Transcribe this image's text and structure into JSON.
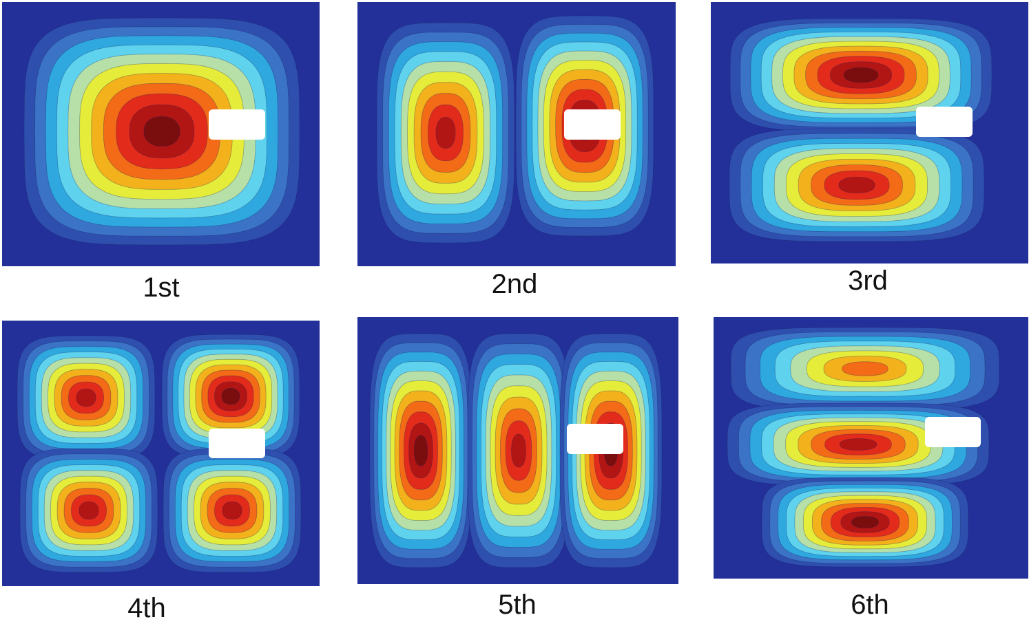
{
  "palette": [
    "#23309a",
    "#2f4fae",
    "#3b74c7",
    "#2ea8df",
    "#5fd3ee",
    "#b6e0a8",
    "#e6ec3a",
    "#f3b21c",
    "#f36a17",
    "#e32b1c",
    "#b21614",
    "#7a0e0e"
  ],
  "obstacle_color": "#ffffff",
  "modes": [
    {
      "caption": "1st"
    },
    {
      "caption": "2nd"
    },
    {
      "caption": "3rd"
    },
    {
      "caption": "4th"
    },
    {
      "caption": "5th"
    },
    {
      "caption": "6th"
    }
  ]
}
